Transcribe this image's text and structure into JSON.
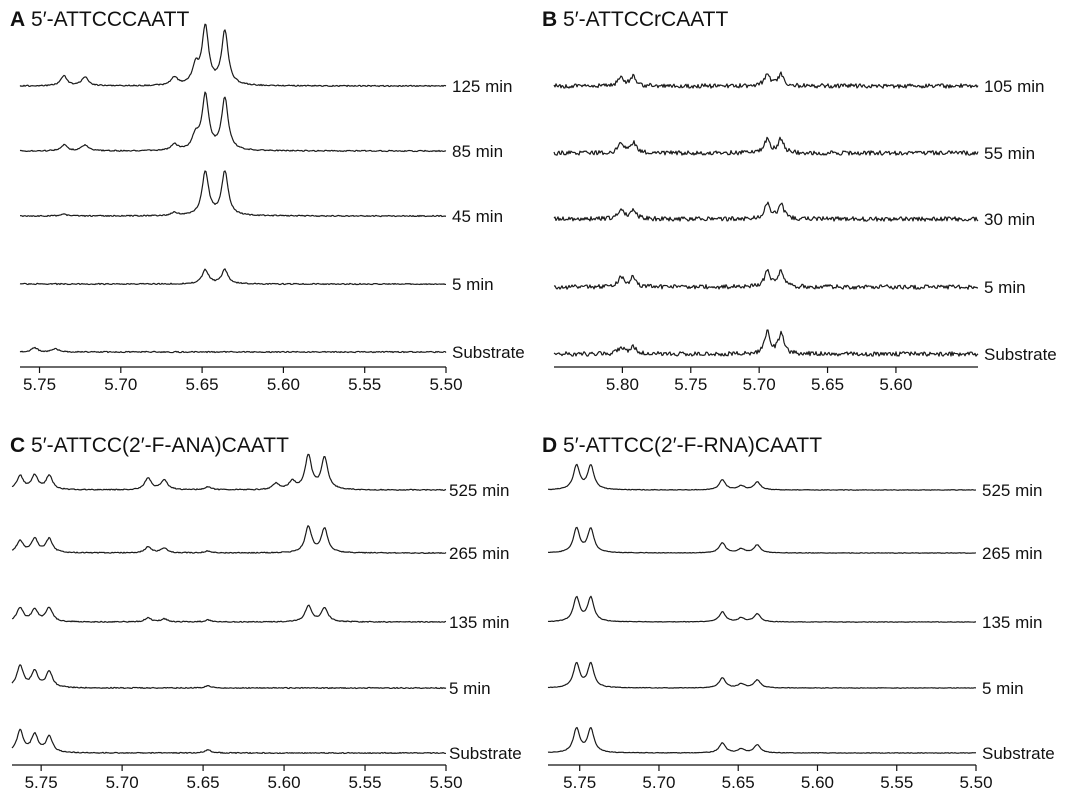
{
  "chart_data": [
    {
      "type": "line",
      "panel_letter": "A",
      "title": "5′-ATTCCCAATT",
      "xlabel": "",
      "xlim": [
        5.762,
        5.5
      ],
      "x_ticks": [
        "5.75",
        "5.70",
        "5.65",
        "5.60",
        "5.55",
        "5.50"
      ],
      "noise": 0.6,
      "series": [
        {
          "label": "125 min",
          "peaks": [
            [
              5.735,
              10
            ],
            [
              5.722,
              9
            ],
            [
              5.667,
              8
            ],
            [
              5.654,
              18
            ],
            [
              5.648,
              58
            ],
            [
              5.636,
              54
            ]
          ]
        },
        {
          "label": "85 min",
          "peaks": [
            [
              5.735,
              6
            ],
            [
              5.722,
              6
            ],
            [
              5.667,
              6
            ],
            [
              5.654,
              14
            ],
            [
              5.648,
              55
            ],
            [
              5.636,
              52
            ]
          ]
        },
        {
          "label": "45 min",
          "peaks": [
            [
              5.735,
              1.5
            ],
            [
              5.667,
              3
            ],
            [
              5.648,
              44
            ],
            [
              5.636,
              44
            ]
          ]
        },
        {
          "label": "5 min",
          "peaks": [
            [
              5.648,
              14
            ],
            [
              5.636,
              14
            ]
          ]
        },
        {
          "label": "Substrate",
          "peaks": [
            [
              5.753,
              4
            ],
            [
              5.74,
              3
            ]
          ]
        }
      ]
    },
    {
      "type": "line",
      "panel_letter": "B",
      "title": "5′-ATTCCrCAATT",
      "xlabel": "",
      "xlim": [
        5.85,
        5.54
      ],
      "x_ticks": [
        "5.80",
        "5.75",
        "5.70",
        "5.65",
        "5.60"
      ],
      "noise": 2.2,
      "series": [
        {
          "label": "105 min",
          "peaks": [
            [
              5.801,
              10
            ],
            [
              5.792,
              9
            ],
            [
              5.694,
              12
            ],
            [
              5.684,
              12
            ]
          ]
        },
        {
          "label": "55 min",
          "peaks": [
            [
              5.801,
              10
            ],
            [
              5.792,
              10
            ],
            [
              5.694,
              14
            ],
            [
              5.684,
              14
            ]
          ]
        },
        {
          "label": "30 min",
          "peaks": [
            [
              5.801,
              10
            ],
            [
              5.792,
              10
            ],
            [
              5.694,
              16
            ],
            [
              5.684,
              15
            ]
          ]
        },
        {
          "label": "5 min",
          "peaks": [
            [
              5.801,
              10
            ],
            [
              5.792,
              10
            ],
            [
              5.694,
              16
            ],
            [
              5.684,
              16
            ]
          ]
        },
        {
          "label": "Substrate",
          "peaks": [
            [
              5.801,
              7
            ],
            [
              5.792,
              7
            ],
            [
              5.694,
              22
            ],
            [
              5.684,
              20
            ]
          ]
        }
      ]
    },
    {
      "type": "line",
      "panel_letter": "C",
      "title": "5′-ATTCC(2′-F-ANA)CAATT",
      "xlabel": "",
      "xlim": [
        5.768,
        5.5
      ],
      "x_ticks": [
        "5.75",
        "5.70",
        "5.65",
        "5.60",
        "5.55",
        "5.50"
      ],
      "noise": 0.5,
      "series": [
        {
          "label": "525 min",
          "peaks": [
            [
              5.763,
              14
            ],
            [
              5.754,
              14
            ],
            [
              5.745,
              14
            ],
            [
              5.684,
              12
            ],
            [
              5.674,
              10
            ],
            [
              5.647,
              3
            ],
            [
              5.605,
              6
            ],
            [
              5.595,
              8
            ],
            [
              5.585,
              34
            ],
            [
              5.575,
              32
            ]
          ]
        },
        {
          "label": "265 min",
          "peaks": [
            [
              5.763,
              12
            ],
            [
              5.754,
              14
            ],
            [
              5.745,
              14
            ],
            [
              5.684,
              6
            ],
            [
              5.674,
              5
            ],
            [
              5.647,
              2
            ],
            [
              5.585,
              26
            ],
            [
              5.575,
              24
            ]
          ]
        },
        {
          "label": "135 min",
          "peaks": [
            [
              5.763,
              14
            ],
            [
              5.754,
              12
            ],
            [
              5.745,
              14
            ],
            [
              5.684,
              4
            ],
            [
              5.674,
              3
            ],
            [
              5.647,
              2
            ],
            [
              5.585,
              16
            ],
            [
              5.575,
              14
            ]
          ]
        },
        {
          "label": "5 min",
          "peaks": [
            [
              5.763,
              22
            ],
            [
              5.754,
              16
            ],
            [
              5.745,
              16
            ],
            [
              5.647,
              2
            ]
          ]
        },
        {
          "label": "Substrate",
          "peaks": [
            [
              5.763,
              22
            ],
            [
              5.754,
              18
            ],
            [
              5.745,
              16
            ],
            [
              5.647,
              3
            ]
          ]
        }
      ]
    },
    {
      "type": "line",
      "panel_letter": "D",
      "title": "5′-ATTCC(2′-F-RNA)CAATT",
      "xlabel": "",
      "xlim": [
        5.77,
        5.5
      ],
      "x_ticks": [
        "5.75",
        "5.70",
        "5.65",
        "5.60",
        "5.55",
        "5.50"
      ],
      "noise": 0.3,
      "series": [
        {
          "label": "525 min",
          "peaks": [
            [
              5.752,
              24
            ],
            [
              5.743,
              24
            ],
            [
              5.66,
              10
            ],
            [
              5.648,
              4
            ],
            [
              5.638,
              8
            ]
          ]
        },
        {
          "label": "265 min",
          "peaks": [
            [
              5.752,
              24
            ],
            [
              5.743,
              24
            ],
            [
              5.66,
              10
            ],
            [
              5.648,
              4
            ],
            [
              5.638,
              8
            ]
          ]
        },
        {
          "label": "135 min",
          "peaks": [
            [
              5.752,
              24
            ],
            [
              5.743,
              24
            ],
            [
              5.66,
              10
            ],
            [
              5.648,
              4
            ],
            [
              5.638,
              8
            ]
          ]
        },
        {
          "label": "5 min",
          "peaks": [
            [
              5.752,
              24
            ],
            [
              5.743,
              24
            ],
            [
              5.66,
              10
            ],
            [
              5.648,
              4
            ],
            [
              5.638,
              8
            ]
          ]
        },
        {
          "label": "Substrate",
          "peaks": [
            [
              5.752,
              24
            ],
            [
              5.743,
              24
            ],
            [
              5.66,
              10
            ],
            [
              5.648,
              4
            ],
            [
              5.638,
              8
            ]
          ]
        }
      ]
    }
  ]
}
